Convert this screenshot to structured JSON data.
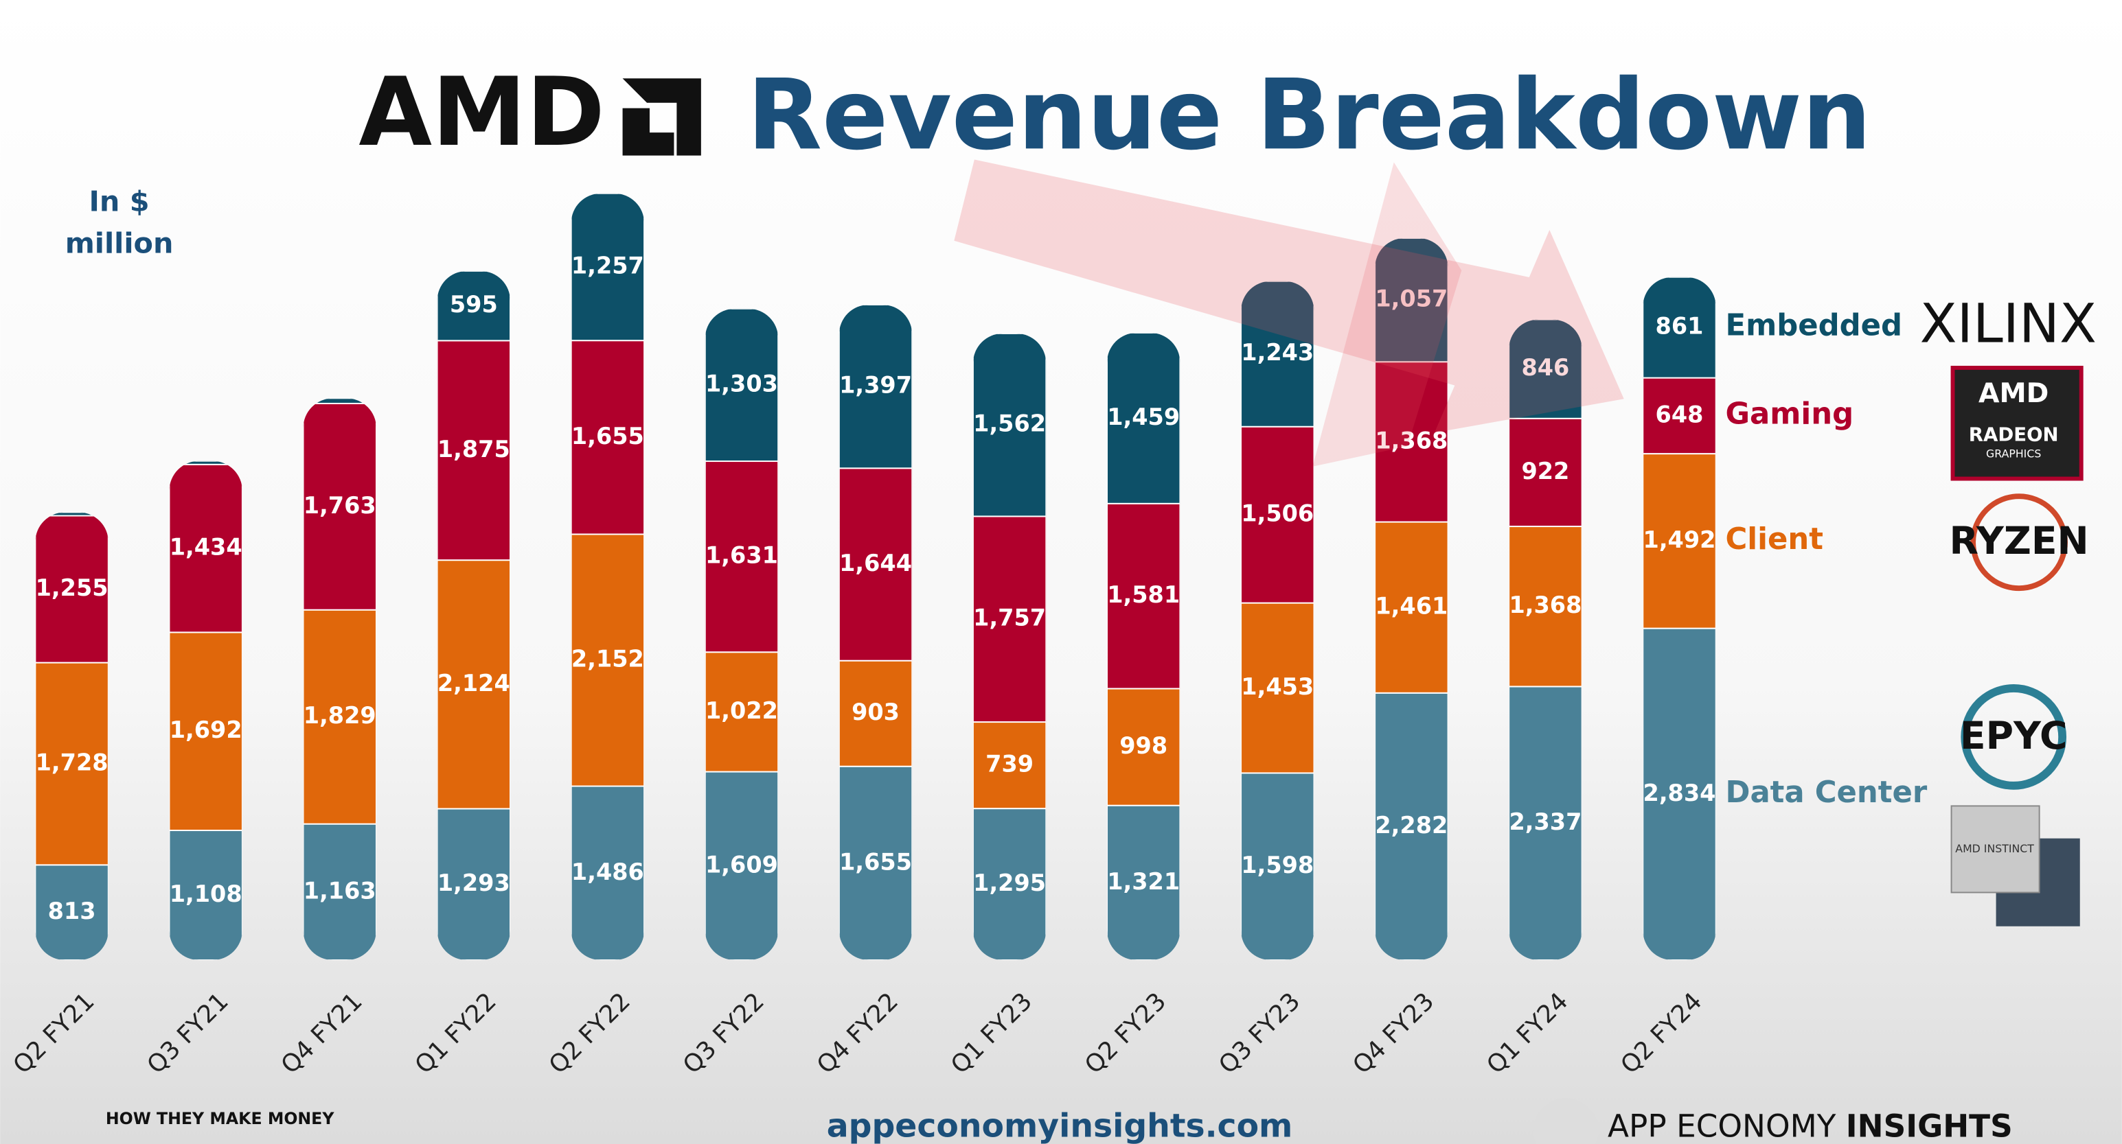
{
  "header": {
    "logo": "AMD",
    "title": "Revenue Breakdown",
    "unit": "In $ million"
  },
  "chart_data": {
    "type": "stacked_bar",
    "categories": [
      "Q2 FY21",
      "Q3 FY21",
      "Q4 FY21",
      "Q1 FY22",
      "Q2 FY22",
      "Q3 FY22",
      "Q4 FY22",
      "Q1 FY23",
      "Q2 FY23",
      "Q3 FY23",
      "Q4 FY23",
      "Q1 FY24",
      "Q2 FY24"
    ],
    "series": [
      {
        "name": "Data Center",
        "color": "#4a8197",
        "values": [
          813,
          1108,
          1163,
          1293,
          1486,
          1609,
          1655,
          1295,
          1321,
          1598,
          2282,
          2337,
          2834
        ],
        "value_labels": [
          "813",
          "1,108",
          "1,163",
          "1,293",
          "1,486",
          "1,609",
          "1,655",
          "1,295",
          "1,321",
          "1,598",
          "2,282",
          "2,337",
          "2,834"
        ]
      },
      {
        "name": "Client",
        "color": "#e0670b",
        "values": [
          1728,
          1692,
          1829,
          2124,
          2152,
          1022,
          903,
          739,
          998,
          1453,
          1461,
          1368,
          1492
        ],
        "value_labels": [
          "1,728",
          "1,692",
          "1,829",
          "2,124",
          "2,152",
          "1,022",
          "903",
          "739",
          "998",
          "1,453",
          "1,461",
          "1,368",
          "1,492"
        ]
      },
      {
        "name": "Gaming",
        "color": "#b0002c",
        "values": [
          1255,
          1434,
          1763,
          1875,
          1655,
          1631,
          1644,
          1757,
          1581,
          1506,
          1368,
          922,
          648
        ],
        "value_labels": [
          "1,255",
          "1,434",
          "1,763",
          "1,875",
          "1,655",
          "1,631",
          "1,644",
          "1,757",
          "1,581",
          "1,506",
          "1,368",
          "922",
          "648"
        ]
      },
      {
        "name": "Embedded",
        "color": "#0d5068",
        "values": [
          30,
          30,
          45,
          595,
          1257,
          1303,
          1397,
          1562,
          1459,
          1243,
          1057,
          846,
          861
        ],
        "value_labels": [
          null,
          null,
          null,
          "595",
          "1,257",
          "1,303",
          "1,397",
          "1,562",
          "1,459",
          "1,243",
          "1,057",
          "846",
          "861"
        ]
      }
    ]
  },
  "brands": [
    "XILINX",
    "AMD",
    "RADEON",
    "GRAPHICS",
    "RYZEN",
    "EPYC",
    "AMD INSTINCT"
  ],
  "footer": {
    "left": "HOW THEY MAKE MONEY",
    "center": "appeconomyinsights.com",
    "right_prefix": "APP ECONOMY",
    "right_bold": "INSIGHTS"
  }
}
